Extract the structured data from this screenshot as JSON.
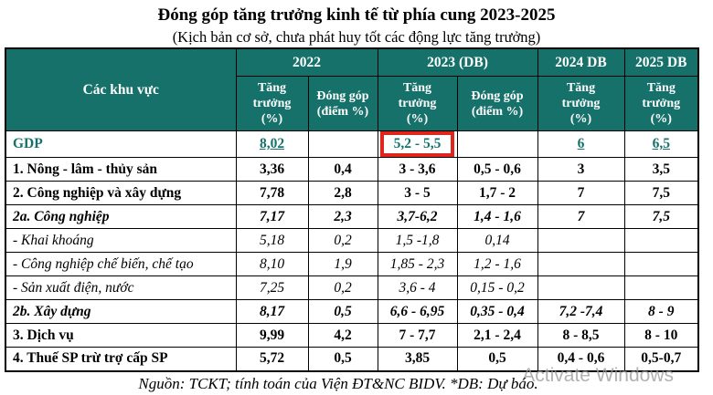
{
  "title": "Đóng góp tăng trưởng kinh tế từ phía cung 2023-2025",
  "subtitle": "(Kịch bản cơ sở, chưa phát huy tốt các động lực tăng trưởng)",
  "table": {
    "corner_header": "Các khu vực",
    "year_groups": [
      {
        "label": "2022"
      },
      {
        "label": "2023 (DB)"
      },
      {
        "label": "2024 DB"
      },
      {
        "label": "2025 DB"
      }
    ],
    "sub_headers": [
      "Tăng\ntrưởng\n(%)",
      "Đóng góp\n(điểm %)",
      "Tăng\ntrưởng\n(%)",
      "Đóng góp\n(điểm %)",
      "Tăng\ntrưởng\n(%)",
      "Tăng\ntrưởng\n(%)"
    ],
    "rows": [
      {
        "label": "GDP",
        "style": "gdp",
        "highlight_col": 2,
        "values": [
          "8,02",
          "",
          "5,2 - 5,5",
          "",
          "6",
          "6,5"
        ]
      },
      {
        "label": "1. Nông - lâm - thủy sản",
        "style": "bold",
        "values": [
          "3,36",
          "0,4",
          "3 - 3,6",
          "0,5 - 0,6",
          "3",
          "3,5"
        ]
      },
      {
        "label": "2. Công nghiệp và xây dựng",
        "style": "bold",
        "values": [
          "7,78",
          "2,8",
          "3 - 5",
          "1,7 - 2",
          "7",
          "7,5"
        ]
      },
      {
        "label": "2a. Công nghiệp",
        "style": "bold-italic",
        "values": [
          "7,17",
          "2,3",
          "3,7-6,2",
          "1,4 - 1,6",
          "7",
          "7,5"
        ]
      },
      {
        "label": "- Khai khoáng",
        "style": "italic",
        "values": [
          "5,18",
          "0,2",
          "1,5 -1,8",
          "0,14",
          "",
          ""
        ]
      },
      {
        "label": "- Công nghiệp chế biến, chế tạo",
        "style": "italic",
        "values": [
          "8,10",
          "1,9",
          "1,85 - 2,3",
          "1,2 - 1,6",
          "",
          ""
        ]
      },
      {
        "label": "- Sản xuất điện, nước",
        "style": "italic",
        "values": [
          "7,25",
          "0,2",
          "3,6 - 4",
          "0,15 - 0,2",
          "",
          ""
        ]
      },
      {
        "label": "2b. Xây dựng",
        "style": "bold-italic",
        "values": [
          "8,17",
          "0,5",
          "6,6 - 6,95",
          "0,35 - 0,4",
          "7,2 -7,4",
          "8 - 9"
        ]
      },
      {
        "label": "3. Dịch vụ",
        "style": "bold",
        "values": [
          "9,99",
          "4,2",
          "7 - 7,7",
          "2,1 - 2,4",
          "8 - 8,5",
          "8 - 10"
        ]
      },
      {
        "label": "4. Thuế SP trừ trợ cấp SP",
        "style": "bold",
        "values": [
          "5,72",
          "0,5",
          "3,85",
          "0,5",
          "0,4 - 0,6",
          "0,5-0,7"
        ]
      }
    ]
  },
  "footer": {
    "source": "Nguồn: TCKT; tính toán của Viện ĐT&NC BIDV. *DB: Dự báo."
  },
  "watermark": "Activate Windows",
  "colors": {
    "header_bg": "#17716B",
    "gdp_text": "#17716B",
    "highlight_border": "#E0251C",
    "watermark_text": "#9E9E9E"
  }
}
